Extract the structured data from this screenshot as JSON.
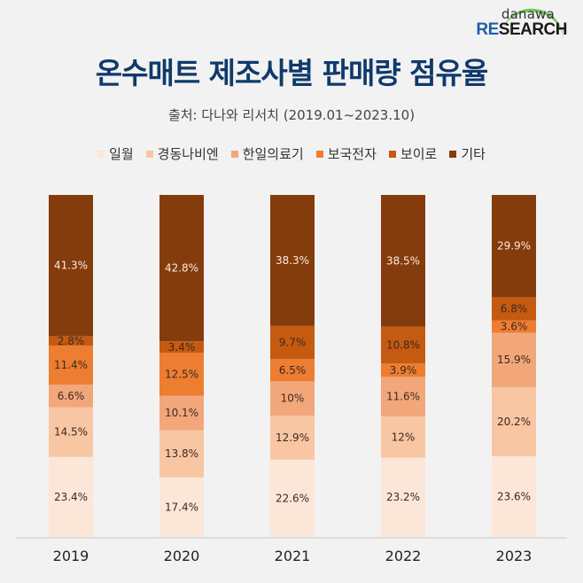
{
  "logo": {
    "top": "danawa",
    "bottom_re": "RE",
    "bottom_rest": "SEARCH"
  },
  "header": {
    "title": "온수매트 제조사별 판매량 점유율",
    "subtitle": "출처: 다나와 리서치 (2019.01~2023.10)"
  },
  "colors": {
    "title": "#0f3a6b",
    "segments": [
      "#fce6d8",
      "#f8c6a3",
      "#f2a77a",
      "#ed7d31",
      "#c55a11",
      "#843c0c"
    ],
    "label_dark": "#3b2a20",
    "label_light": "#fbe9dc"
  },
  "chart_data": {
    "type": "bar",
    "stacked": true,
    "title": "온수매트 제조사별 판매량 점유율",
    "subtitle": "출처: 다나와 리서치 (2019.01~2023.10)",
    "xlabel": "",
    "ylabel": "",
    "ylim": [
      0,
      100
    ],
    "unit": "%",
    "grid": false,
    "legend_position": "top",
    "categories": [
      "2019",
      "2020",
      "2021",
      "2022",
      "2023"
    ],
    "series": [
      {
        "name": "일월",
        "values": [
          23.4,
          17.4,
          22.6,
          23.2,
          23.6
        ],
        "labels": [
          "23.4%",
          "17.4%",
          "22.6%",
          "23.2%",
          "23.6%"
        ]
      },
      {
        "name": "경동나비엔",
        "values": [
          14.5,
          13.8,
          12.9,
          12.0,
          20.2
        ],
        "labels": [
          "14.5%",
          "13.8%",
          "12.9%",
          "12%",
          "20.2%"
        ]
      },
      {
        "name": "한일의료기",
        "values": [
          6.6,
          10.1,
          10.0,
          11.6,
          15.9
        ],
        "labels": [
          "6.6%",
          "10.1%",
          "10%",
          "11.6%",
          "15.9%"
        ]
      },
      {
        "name": "보국전자",
        "values": [
          11.4,
          12.5,
          6.5,
          3.9,
          3.6
        ],
        "labels": [
          "11.4%",
          "12.5%",
          "6.5%",
          "3.9%",
          "3.6%"
        ]
      },
      {
        "name": "보이로",
        "values": [
          2.8,
          3.4,
          9.7,
          10.8,
          6.8
        ],
        "labels": [
          "2.8%",
          "3.4%",
          "9.7%",
          "10.8%",
          "6.8%"
        ]
      },
      {
        "name": "기타",
        "values": [
          41.3,
          42.8,
          38.3,
          38.5,
          29.9
        ],
        "labels": [
          "41.3%",
          "42.8%",
          "38.3%",
          "38.5%",
          "29.9%"
        ]
      }
    ]
  }
}
